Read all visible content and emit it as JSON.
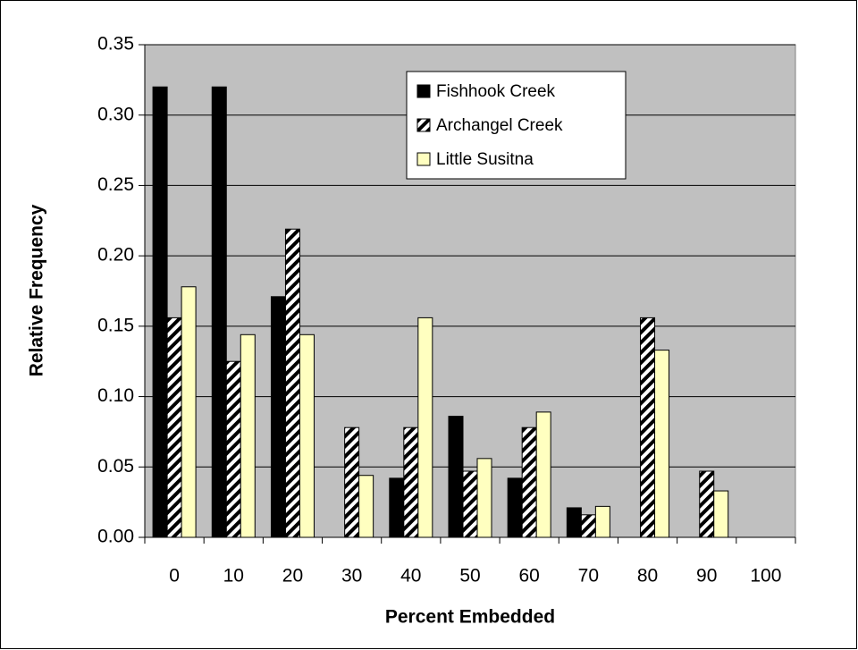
{
  "chart_data": {
    "type": "bar",
    "x_label": "Percent Embedded",
    "y_label": "Relative Frequency",
    "categories": [
      "0",
      "10",
      "20",
      "30",
      "40",
      "50",
      "60",
      "70",
      "80",
      "90",
      "100"
    ],
    "series": [
      {
        "name": "Fishhook Creek",
        "color": "#000000",
        "hatch": false,
        "values": [
          0.32,
          0.32,
          0.171,
          0,
          0.042,
          0.086,
          0.042,
          0.021,
          0,
          0,
          0
        ]
      },
      {
        "name": "Archangel Creek",
        "color": "#ffffff",
        "hatch": true,
        "values": [
          0.156,
          0.125,
          0.219,
          0.078,
          0.078,
          0.047,
          0.078,
          0.016,
          0.156,
          0.047,
          0
        ]
      },
      {
        "name": "Little Susitna",
        "color": "#ffffc0",
        "hatch": false,
        "values": [
          0.178,
          0.144,
          0.144,
          0.044,
          0.156,
          0.056,
          0.089,
          0.022,
          0.133,
          0.033,
          0
        ]
      }
    ],
    "ylim": [
      0,
      0.35
    ],
    "yticks": [
      {
        "value": 0,
        "label": "0.00"
      },
      {
        "value": 0.05,
        "label": "0.05"
      },
      {
        "value": 0.1,
        "label": "0.10"
      },
      {
        "value": 0.15,
        "label": "0.15"
      },
      {
        "value": 0.2,
        "label": "0.20"
      },
      {
        "value": 0.25,
        "label": "0.25"
      },
      {
        "value": 0.3,
        "label": "0.30"
      },
      {
        "value": 0.35,
        "label": "0.35"
      }
    ],
    "grid": true,
    "plot_background": "#c0c0c0",
    "legend_position": "top-right"
  }
}
